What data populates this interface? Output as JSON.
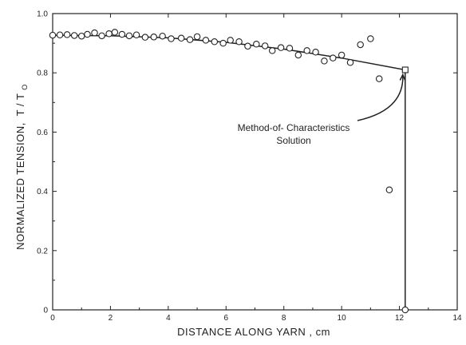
{
  "chart_data": {
    "type": "scatter",
    "title": "",
    "xlabel": "DISTANCE ALONG YARN , cm",
    "ylabel": {
      "main": "NORMALIZED TENSION,",
      "num": "T",
      "slash": "/",
      "den": "T",
      "den_sub": "O"
    },
    "xlim": [
      0,
      14
    ],
    "ylim": [
      0,
      1.0
    ],
    "x_ticks": [
      0,
      2,
      4,
      6,
      8,
      10,
      12,
      14
    ],
    "x_tick_labels": [
      "0",
      "2",
      "4",
      "6",
      "8",
      "10",
      "12",
      "14"
    ],
    "y_ticks": [
      0,
      0.2,
      0.4,
      0.6,
      0.8,
      1.0
    ],
    "y_tick_labels": [
      "0",
      "0.2",
      "0.4",
      "0.6",
      "0.8",
      "1.0"
    ],
    "grid": false,
    "series": [
      {
        "kind": "points",
        "marker": "circle",
        "values": [
          [
            0.0,
            0.927
          ],
          [
            0.25,
            0.928
          ],
          [
            0.5,
            0.929
          ],
          [
            0.75,
            0.926
          ],
          [
            1.0,
            0.924
          ],
          [
            1.2,
            0.93
          ],
          [
            1.45,
            0.935
          ],
          [
            1.7,
            0.925
          ],
          [
            1.95,
            0.932
          ],
          [
            2.15,
            0.937
          ],
          [
            2.4,
            0.93
          ],
          [
            2.65,
            0.925
          ],
          [
            2.9,
            0.928
          ],
          [
            3.2,
            0.92
          ],
          [
            3.5,
            0.921
          ],
          [
            3.8,
            0.924
          ],
          [
            4.1,
            0.915
          ],
          [
            4.45,
            0.917
          ],
          [
            4.75,
            0.912
          ],
          [
            5.0,
            0.922
          ],
          [
            5.3,
            0.91
          ],
          [
            5.6,
            0.905
          ],
          [
            5.9,
            0.9
          ],
          [
            6.15,
            0.91
          ],
          [
            6.45,
            0.905
          ],
          [
            6.75,
            0.89
          ],
          [
            7.05,
            0.897
          ],
          [
            7.35,
            0.891
          ],
          [
            7.6,
            0.875
          ],
          [
            7.9,
            0.885
          ],
          [
            8.2,
            0.883
          ],
          [
            8.5,
            0.86
          ],
          [
            8.8,
            0.875
          ],
          [
            9.1,
            0.87
          ],
          [
            9.4,
            0.84
          ],
          [
            9.7,
            0.85
          ],
          [
            10.0,
            0.86
          ],
          [
            10.3,
            0.835
          ],
          [
            10.65,
            0.895
          ],
          [
            11.0,
            0.915
          ],
          [
            11.3,
            0.78
          ],
          [
            11.65,
            0.405
          ],
          [
            12.2,
            0.0
          ]
        ]
      },
      {
        "kind": "line",
        "values": [
          [
            0.0,
            0.927
          ],
          [
            2.0,
            0.925
          ],
          [
            4.0,
            0.918
          ],
          [
            6.0,
            0.903
          ],
          [
            8.0,
            0.88
          ],
          [
            10.0,
            0.85
          ],
          [
            12.2,
            0.81
          ],
          [
            12.2,
            0.0
          ]
        ]
      }
    ],
    "square_markers": [
      [
        12.2,
        0.81
      ]
    ],
    "annotations": [
      {
        "lines": [
          "Method-of- Characteristics",
          "Solution"
        ],
        "points_to": [
          12.2,
          0.81
        ]
      }
    ]
  }
}
